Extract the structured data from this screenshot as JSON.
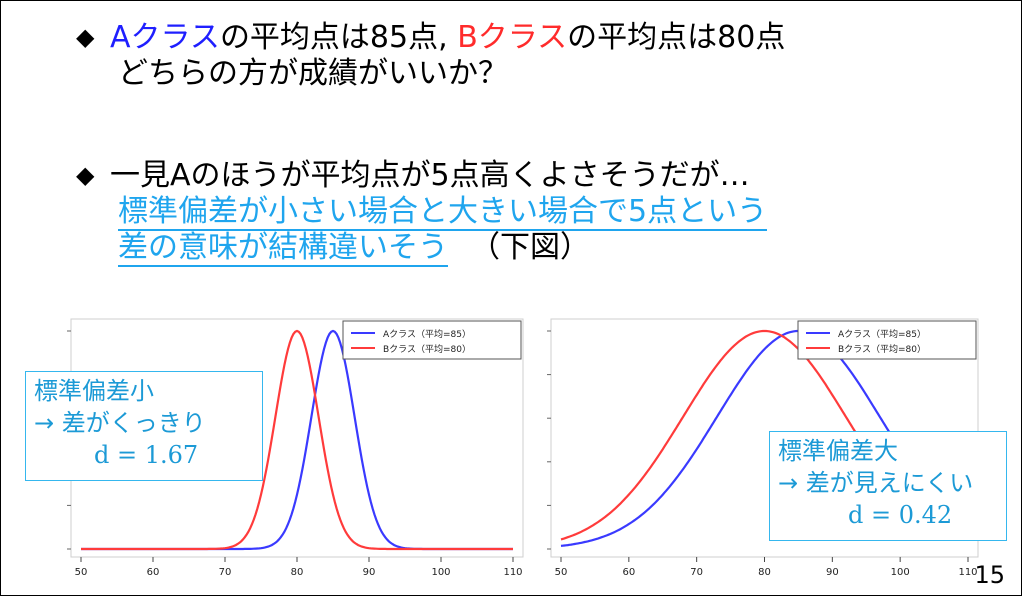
{
  "bullet_glyph": "◆",
  "bullet1": {
    "class_a": "Aクラス",
    "mid": "の平均点は85点, ",
    "class_b": "Bクラス",
    "end": "の平均点は80点",
    "line2": "どちらの方が成績がいいか？"
  },
  "bullet2": {
    "line1": "一見Aのほうが平均点が5点高くよさそうだが…",
    "link_line1": "標準偏差が小さい場合と大きい場合で5点という",
    "link_line2": "差の意味が結構違いそう",
    "suffix": "（下図）"
  },
  "chart_data": [
    {
      "type": "line",
      "xlim": [
        50,
        110
      ],
      "xticks": [
        50,
        60,
        70,
        80,
        90,
        100,
        110
      ],
      "legend_position": "top-right",
      "series": [
        {
          "name": "Aクラス（平均=85）",
          "mean": 85,
          "sd": 3,
          "color": "#3a3aff"
        },
        {
          "name": "Bクラス（平均=80）",
          "mean": 80,
          "sd": 3,
          "color": "#ff3b3b"
        }
      ]
    },
    {
      "type": "line",
      "xlim": [
        50,
        110
      ],
      "xticks": [
        50,
        60,
        70,
        80,
        90,
        100,
        110
      ],
      "legend_position": "top-right",
      "series": [
        {
          "name": "Aクラス（平均=85）",
          "mean": 85,
          "sd": 12,
          "color": "#3a3aff"
        },
        {
          "name": "Bクラス（平均=80）",
          "mean": 80,
          "sd": 12,
          "color": "#ff3b3b"
        }
      ]
    }
  ],
  "callout_left": {
    "line1": "標準偏差小",
    "line2": "→ 差がくっきり",
    "d_text": "d = 1.67"
  },
  "callout_right": {
    "line1": "標準偏差大",
    "line2": "→ 差が見えにくい",
    "d_text": "d = 0.42"
  },
  "page_number": "15"
}
